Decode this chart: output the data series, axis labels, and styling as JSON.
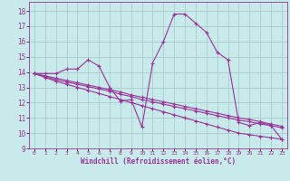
{
  "background_color": "#c8eaea",
  "grid_color": "#aacccc",
  "line_color": "#993399",
  "xlabel": "Windchill (Refroidissement éolien,°C)",
  "xlim": [
    -0.5,
    23.5
  ],
  "ylim": [
    9,
    18.6
  ],
  "yticks": [
    9,
    10,
    11,
    12,
    13,
    14,
    15,
    16,
    17,
    18
  ],
  "xticks": [
    0,
    1,
    2,
    3,
    4,
    5,
    6,
    7,
    8,
    9,
    10,
    11,
    12,
    13,
    14,
    15,
    16,
    17,
    18,
    19,
    20,
    21,
    22,
    23
  ],
  "lines": [
    {
      "x": [
        0,
        1,
        2,
        3,
        4,
        5,
        6,
        7,
        8,
        9,
        10,
        11,
        12,
        13,
        14,
        15,
        16,
        17,
        18,
        19,
        20,
        21,
        22,
        23
      ],
      "y": [
        13.9,
        13.9,
        13.9,
        14.2,
        14.2,
        14.8,
        14.4,
        13.0,
        12.1,
        12.2,
        10.4,
        14.6,
        16.0,
        17.8,
        17.8,
        17.2,
        16.6,
        15.3,
        14.8,
        10.7,
        10.5,
        10.7,
        10.5,
        9.6
      ]
    },
    {
      "x": [
        0,
        1,
        2,
        3,
        4,
        5,
        6,
        7,
        8,
        9,
        10,
        11,
        12,
        13,
        14,
        15,
        16,
        17,
        18,
        19,
        20,
        21,
        22,
        23
      ],
      "y": [
        13.9,
        13.75,
        13.6,
        13.45,
        13.3,
        13.15,
        13.0,
        12.85,
        12.7,
        12.5,
        12.35,
        12.2,
        12.05,
        11.9,
        11.75,
        11.6,
        11.45,
        11.3,
        11.15,
        11.0,
        10.9,
        10.75,
        10.6,
        10.45
      ]
    },
    {
      "x": [
        0,
        1,
        2,
        3,
        4,
        5,
        6,
        7,
        8,
        9,
        10,
        11,
        12,
        13,
        14,
        15,
        16,
        17,
        18,
        19,
        20,
        21,
        22,
        23
      ],
      "y": [
        13.9,
        13.7,
        13.5,
        13.35,
        13.2,
        13.05,
        12.9,
        12.75,
        12.55,
        12.4,
        12.2,
        12.05,
        11.9,
        11.75,
        11.6,
        11.45,
        11.3,
        11.15,
        11.0,
        10.85,
        10.75,
        10.6,
        10.5,
        10.35
      ]
    },
    {
      "x": [
        0,
        1,
        2,
        3,
        4,
        5,
        6,
        7,
        8,
        9,
        10,
        11,
        12,
        13,
        14,
        15,
        16,
        17,
        18,
        19,
        20,
        21,
        22,
        23
      ],
      "y": [
        13.9,
        13.65,
        13.4,
        13.2,
        13.0,
        12.8,
        12.6,
        12.4,
        12.2,
        12.0,
        11.8,
        11.6,
        11.4,
        11.2,
        11.0,
        10.8,
        10.6,
        10.4,
        10.2,
        10.0,
        9.9,
        9.8,
        9.7,
        9.6
      ]
    }
  ]
}
